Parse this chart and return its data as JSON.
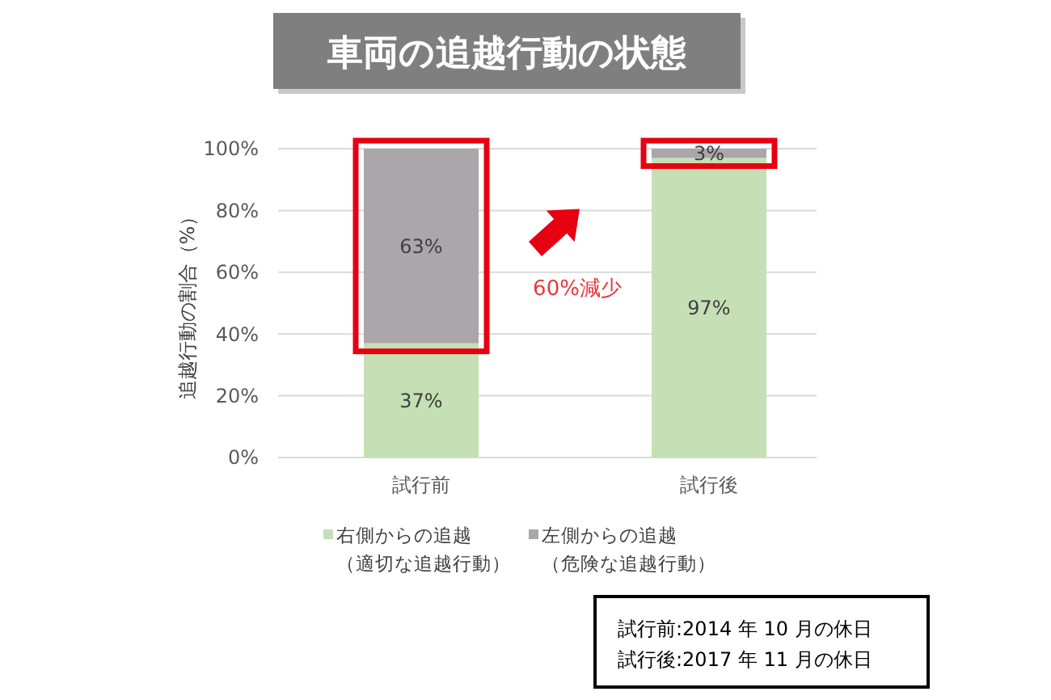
{
  "chart_data": {
    "type": "bar",
    "title": "車両の追越行動の状態",
    "ylabel": "追越行動の割合（%）",
    "categories": [
      "試行前",
      "試行後"
    ],
    "stacked": true,
    "series": [
      {
        "name": "右側からの追越（適切な追越行動）",
        "color": "#c5e0b4",
        "values": [
          37,
          97
        ],
        "value_labels": [
          "37%",
          "97%"
        ]
      },
      {
        "name": "左側からの追越（危険な追越行動）",
        "color": "#aba6a9",
        "values": [
          63,
          3
        ],
        "value_labels": [
          "63%",
          "3%"
        ]
      }
    ],
    "ylim": [
      0,
      100
    ],
    "yticks": [
      {
        "value": 0,
        "label": "0%"
      },
      {
        "value": 20,
        "label": "20%"
      },
      {
        "value": 40,
        "label": "40%"
      },
      {
        "value": 60,
        "label": "60%"
      },
      {
        "value": 80,
        "label": "80%"
      },
      {
        "value": 100,
        "label": "100%"
      }
    ],
    "grid": "y",
    "legend": "bottom",
    "annotations": [
      "60%減少",
      "試行前:2014 年 10 月の休日",
      "試行後:2017 年 11 月の休日"
    ]
  }
}
